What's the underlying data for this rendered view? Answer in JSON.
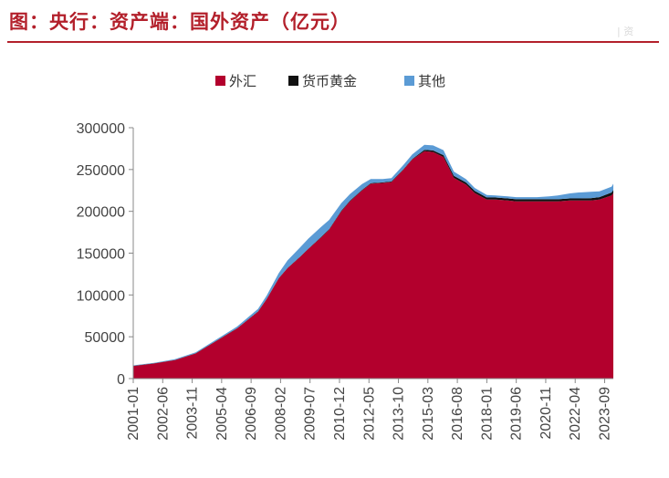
{
  "header": {
    "title": "图：央行：资产端：国外资产（亿元）",
    "watermark": "| 资"
  },
  "chart_data": {
    "type": "area",
    "stacked": true,
    "title": "",
    "xlabel": "",
    "ylabel": "",
    "ylim": [
      0,
      300000
    ],
    "y_ticks": [
      "0",
      "50000",
      "100000",
      "150000",
      "200000",
      "250000",
      "300000"
    ],
    "x_range": [
      "2001-01",
      "2024-02"
    ],
    "x_ticks": [
      "2001-01",
      "2002-06",
      "2003-11",
      "2005-04",
      "2006-09",
      "2008-02",
      "2009-07",
      "2010-12",
      "2012-05",
      "2013-10",
      "2015-03",
      "2016-08",
      "2018-01",
      "2019-06",
      "2020-11",
      "2022-04",
      "2023-09"
    ],
    "legend_position": "top-center",
    "grid": false,
    "x": [
      "2001-01",
      "2002-01",
      "2003-01",
      "2004-01",
      "2005-01",
      "2006-01",
      "2007-01",
      "2007-06",
      "2008-01",
      "2008-06",
      "2009-01",
      "2009-06",
      "2010-01",
      "2010-06",
      "2011-01",
      "2011-06",
      "2012-01",
      "2012-06",
      "2013-01",
      "2013-06",
      "2014-01",
      "2014-06",
      "2015-01",
      "2015-06",
      "2015-12",
      "2016-06",
      "2017-01",
      "2017-06",
      "2018-01",
      "2018-06",
      "2019-01",
      "2019-06",
      "2020-01",
      "2020-06",
      "2021-01",
      "2021-06",
      "2022-01",
      "2022-06",
      "2023-01",
      "2023-06",
      "2024-01",
      "2024-02"
    ],
    "series": [
      {
        "name": "外汇",
        "color": "#b3002d",
        "values": [
          15000,
          18000,
          22000,
          30000,
          45000,
          60000,
          80000,
          95000,
          120000,
          132000,
          145000,
          155000,
          168000,
          178000,
          200000,
          212000,
          225000,
          233000,
          234000,
          235000,
          250000,
          262000,
          272000,
          271000,
          265000,
          240000,
          232000,
          222000,
          214000,
          214000,
          213000,
          212000,
          212000,
          212000,
          212000,
          212000,
          213000,
          213000,
          213000,
          214000,
          219000,
          222000
        ]
      },
      {
        "name": "货币黄金",
        "color": "#111111",
        "values": [
          300,
          300,
          300,
          300,
          300,
          300,
          300,
          300,
          300,
          300,
          300,
          300,
          700,
          700,
          700,
          700,
          700,
          700,
          700,
          700,
          700,
          700,
          1500,
          1800,
          2200,
          2500,
          2500,
          2500,
          2500,
          2500,
          2500,
          2500,
          2500,
          2500,
          2500,
          2500,
          2500,
          2500,
          2800,
          3000,
          3500,
          3500
        ]
      },
      {
        "name": "其他",
        "color": "#5b9bd5",
        "values": [
          500,
          600,
          800,
          1000,
          1500,
          2000,
          3000,
          4000,
          6000,
          9000,
          11000,
          12000,
          12000,
          11000,
          9000,
          8000,
          7000,
          5000,
          4000,
          4000,
          5000,
          5500,
          6000,
          6000,
          6000,
          5000,
          4000,
          3500,
          3000,
          2500,
          2500,
          2500,
          2500,
          2500,
          3500,
          4500,
          6000,
          7000,
          7500,
          7000,
          7000,
          7500
        ]
      }
    ]
  }
}
